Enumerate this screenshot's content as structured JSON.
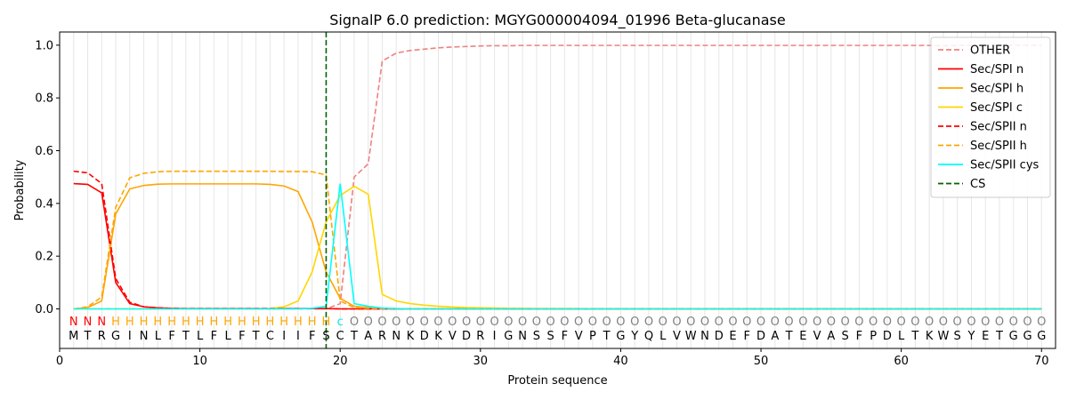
{
  "chart_data": {
    "type": "line",
    "title": "SignalP 6.0 prediction: MGYG000004094_01996 Beta-glucanase",
    "xlabel": "Protein sequence",
    "ylabel": "Probability",
    "xlim": [
      0,
      71
    ],
    "ylim": [
      -0.15,
      1.05
    ],
    "xticks": [
      0,
      10,
      20,
      30,
      40,
      50,
      60,
      70
    ],
    "yticks": [
      0.0,
      0.2,
      0.4,
      0.6,
      0.8,
      1.0
    ],
    "ytick_labels": [
      "0.0",
      "0.2",
      "0.4",
      "0.6",
      "0.8",
      "1.0"
    ],
    "legend_position": "top-right",
    "cleavage_site": 19,
    "sequence": [
      "M",
      "T",
      "R",
      "G",
      "I",
      "N",
      "L",
      "F",
      "T",
      "L",
      "F",
      "L",
      "F",
      "T",
      "C",
      "I",
      "I",
      "F",
      "S",
      "C",
      "T",
      "A",
      "R",
      "N",
      "K",
      "D",
      "K",
      "V",
      "D",
      "R",
      "I",
      "G",
      "N",
      "S",
      "S",
      "F",
      "V",
      "P",
      "T",
      "G",
      "Y",
      "Q",
      "L",
      "V",
      "W",
      "N",
      "D",
      "E",
      "F",
      "D",
      "A",
      "T",
      "E",
      "V",
      "A",
      "S",
      "F",
      "P",
      "D",
      "L",
      "T",
      "K",
      "W",
      "S",
      "Y",
      "E",
      "T",
      "G",
      "G",
      "G"
    ],
    "labels": [
      "N",
      "N",
      "N",
      "H",
      "H",
      "H",
      "H",
      "H",
      "H",
      "H",
      "H",
      "H",
      "H",
      "H",
      "H",
      "H",
      "H",
      "H",
      "H",
      "c",
      "O",
      "O",
      "O",
      "O",
      "O",
      "O",
      "O",
      "O",
      "O",
      "O",
      "O",
      "O",
      "O",
      "O",
      "O",
      "O",
      "O",
      "O",
      "O",
      "O",
      "O",
      "O",
      "O",
      "O",
      "O",
      "O",
      "O",
      "O",
      "O",
      "O",
      "O",
      "O",
      "O",
      "O",
      "O",
      "O",
      "O",
      "O",
      "O",
      "O",
      "O",
      "O",
      "O",
      "O",
      "O",
      "O",
      "O",
      "O",
      "O",
      "O"
    ],
    "label_colors": {
      "N": "#ff0000",
      "H": "#ffa500",
      "c": "#00e5ee",
      "O": "#808080"
    },
    "series": [
      {
        "name": "OTHER",
        "color": "#f08080",
        "dash": true,
        "values": [
          0.0,
          0.0,
          0.0,
          0.0,
          0.0,
          0.0,
          0.0,
          0.0,
          0.0,
          0.0,
          0.0,
          0.0,
          0.0,
          0.0,
          0.0,
          0.0,
          0.0,
          0.0,
          0.0,
          0.02,
          0.5,
          0.55,
          0.94,
          0.97,
          0.98,
          0.985,
          0.99,
          0.993,
          0.995,
          0.997,
          0.998,
          0.998,
          0.999,
          0.999,
          0.999,
          0.999,
          0.999,
          0.999,
          0.999,
          0.999,
          0.999,
          0.999,
          0.999,
          0.999,
          0.999,
          0.999,
          0.999,
          0.999,
          0.999,
          0.999,
          0.999,
          0.999,
          0.999,
          0.999,
          0.999,
          0.999,
          0.999,
          0.999,
          0.999,
          0.999,
          0.999,
          0.999,
          0.998,
          0.999,
          0.999,
          0.999,
          0.999,
          0.999,
          0.999,
          0.999
        ]
      },
      {
        "name": "Sec/SPI n",
        "color": "#ff0000",
        "dash": false,
        "values": [
          0.475,
          0.472,
          0.44,
          0.1,
          0.02,
          0.008,
          0.004,
          0.002,
          0.001,
          0.001,
          0.001,
          0.001,
          0.001,
          0.001,
          0.001,
          0.001,
          0.001,
          0.001,
          0.001,
          0.0,
          0.0,
          0.0,
          0.0,
          0.0,
          0.0,
          0.0,
          0.0,
          0.0,
          0.0,
          0.0,
          0.0,
          0.0,
          0.0,
          0.0,
          0.0,
          0.0,
          0.0,
          0.0,
          0.0,
          0.0,
          0.0,
          0.0,
          0.0,
          0.0,
          0.0,
          0.0,
          0.0,
          0.0,
          0.0,
          0.0,
          0.0,
          0.0,
          0.0,
          0.0,
          0.0,
          0.0,
          0.0,
          0.0,
          0.0,
          0.0,
          0.0,
          0.0,
          0.0,
          0.0,
          0.0,
          0.0,
          0.0,
          0.0,
          0.0,
          0.0
        ]
      },
      {
        "name": "Sec/SPI h",
        "color": "#ffa500",
        "dash": false,
        "values": [
          0.0,
          0.005,
          0.03,
          0.36,
          0.455,
          0.468,
          0.473,
          0.474,
          0.474,
          0.474,
          0.474,
          0.474,
          0.474,
          0.474,
          0.472,
          0.466,
          0.445,
          0.33,
          0.14,
          0.04,
          0.01,
          0.005,
          0.002,
          0.001,
          0.0,
          0.0,
          0.0,
          0.0,
          0.0,
          0.0,
          0.0,
          0.0,
          0.0,
          0.0,
          0.0,
          0.0,
          0.0,
          0.0,
          0.0,
          0.0,
          0.0,
          0.0,
          0.0,
          0.0,
          0.0,
          0.0,
          0.0,
          0.0,
          0.0,
          0.0,
          0.0,
          0.0,
          0.0,
          0.0,
          0.0,
          0.0,
          0.0,
          0.0,
          0.0,
          0.0,
          0.0,
          0.0,
          0.0,
          0.0,
          0.0,
          0.0,
          0.0,
          0.0,
          0.0,
          0.0
        ]
      },
      {
        "name": "Sec/SPI c",
        "color": "#ffd700",
        "dash": false,
        "values": [
          0.0,
          0.0,
          0.0,
          0.0,
          0.0,
          0.0,
          0.0,
          0.0,
          0.0,
          0.0,
          0.0,
          0.0,
          0.0,
          0.0,
          0.001,
          0.008,
          0.03,
          0.14,
          0.33,
          0.43,
          0.465,
          0.435,
          0.055,
          0.03,
          0.02,
          0.014,
          0.01,
          0.007,
          0.005,
          0.004,
          0.003,
          0.002,
          0.002,
          0.001,
          0.001,
          0.001,
          0.001,
          0.0,
          0.0,
          0.0,
          0.0,
          0.0,
          0.0,
          0.0,
          0.0,
          0.0,
          0.0,
          0.0,
          0.0,
          0.0,
          0.0,
          0.0,
          0.0,
          0.0,
          0.0,
          0.0,
          0.0,
          0.0,
          0.0,
          0.0,
          0.0,
          0.0,
          0.0,
          0.0,
          0.0,
          0.0,
          0.0,
          0.0,
          0.0,
          0.0
        ]
      },
      {
        "name": "Sec/SPII n",
        "color": "#ff0000",
        "dash": true,
        "values": [
          0.522,
          0.516,
          0.475,
          0.115,
          0.025,
          0.008,
          0.004,
          0.002,
          0.001,
          0.001,
          0.001,
          0.001,
          0.001,
          0.001,
          0.001,
          0.001,
          0.001,
          0.001,
          0.001,
          0.0,
          0.0,
          0.0,
          0.0,
          0.0,
          0.0,
          0.0,
          0.0,
          0.0,
          0.0,
          0.0,
          0.0,
          0.0,
          0.0,
          0.0,
          0.0,
          0.0,
          0.0,
          0.0,
          0.0,
          0.0,
          0.0,
          0.0,
          0.0,
          0.0,
          0.0,
          0.0,
          0.0,
          0.0,
          0.0,
          0.0,
          0.0,
          0.0,
          0.0,
          0.0,
          0.0,
          0.0,
          0.0,
          0.0,
          0.0,
          0.0,
          0.0,
          0.0,
          0.0,
          0.0,
          0.0,
          0.0,
          0.0,
          0.0,
          0.0,
          0.0
        ]
      },
      {
        "name": "Sec/SPII h",
        "color": "#ffa500",
        "dash": true,
        "values": [
          0.0,
          0.008,
          0.045,
          0.385,
          0.497,
          0.514,
          0.52,
          0.522,
          0.522,
          0.522,
          0.522,
          0.522,
          0.522,
          0.522,
          0.522,
          0.521,
          0.521,
          0.52,
          0.508,
          0.03,
          0.005,
          0.002,
          0.001,
          0.0,
          0.0,
          0.0,
          0.0,
          0.0,
          0.0,
          0.0,
          0.0,
          0.0,
          0.0,
          0.0,
          0.0,
          0.0,
          0.0,
          0.0,
          0.0,
          0.0,
          0.0,
          0.0,
          0.0,
          0.0,
          0.0,
          0.0,
          0.0,
          0.0,
          0.0,
          0.0,
          0.0,
          0.0,
          0.0,
          0.0,
          0.0,
          0.0,
          0.0,
          0.0,
          0.0,
          0.0,
          0.0,
          0.0,
          0.0,
          0.0,
          0.0,
          0.0,
          0.0,
          0.0,
          0.0,
          0.0
        ]
      },
      {
        "name": "Sec/SPII cys",
        "color": "#00ffff",
        "dash": false,
        "values": [
          0.0,
          0.0,
          0.0,
          0.0,
          0.0,
          0.0,
          0.0,
          0.0,
          0.0,
          0.0,
          0.0,
          0.0,
          0.0,
          0.0,
          0.0,
          0.0,
          0.0,
          0.002,
          0.01,
          0.475,
          0.02,
          0.01,
          0.003,
          0.001,
          0.0,
          0.0,
          0.0,
          0.0,
          0.0,
          0.0,
          0.0,
          0.0,
          0.0,
          0.0,
          0.0,
          0.0,
          0.0,
          0.0,
          0.0,
          0.0,
          0.0,
          0.0,
          0.0,
          0.0,
          0.0,
          0.0,
          0.0,
          0.0,
          0.0,
          0.0,
          0.0,
          0.0,
          0.0,
          0.0,
          0.0,
          0.0,
          0.0,
          0.0,
          0.0,
          0.0,
          0.0,
          0.0,
          0.0,
          0.0,
          0.0,
          0.0,
          0.0,
          0.0,
          0.0,
          0.0
        ]
      }
    ],
    "cs_legend": {
      "name": "CS",
      "color": "#006400"
    }
  }
}
